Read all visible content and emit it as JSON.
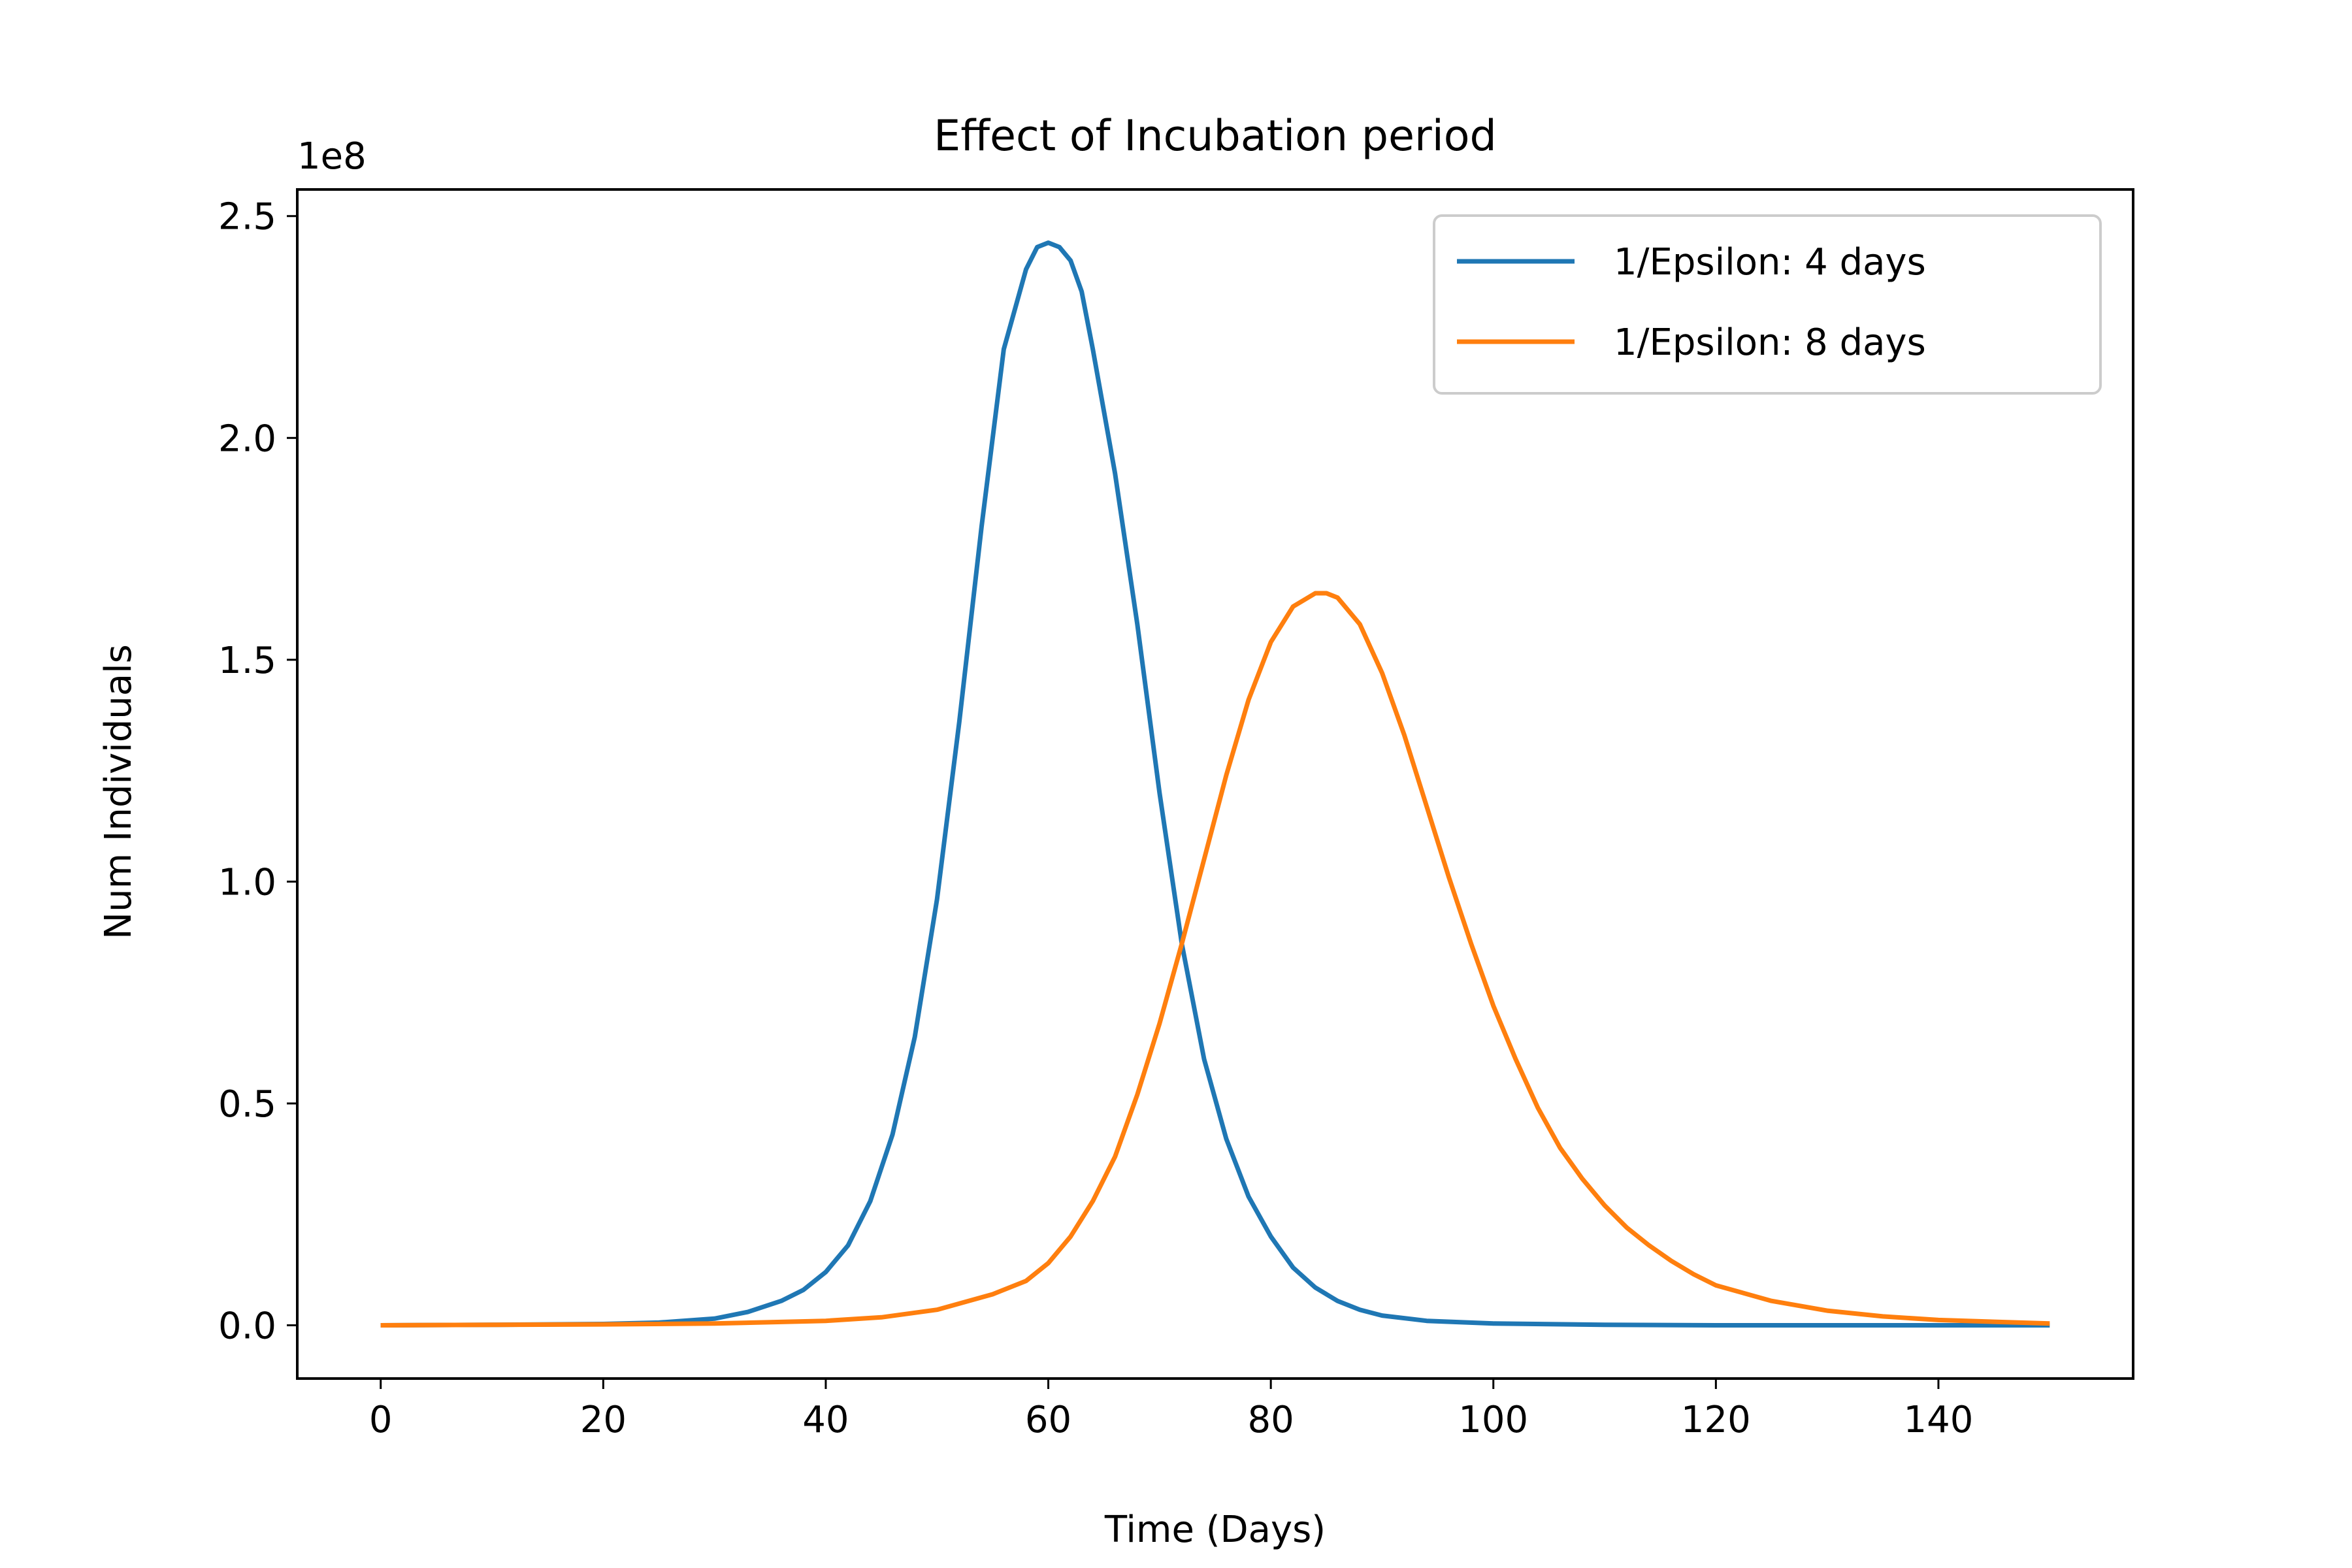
{
  "chart_data": {
    "type": "line",
    "title": "Effect of Incubation period",
    "xlabel": "Time (Days)",
    "ylabel": "Num Individuals",
    "y_offset_label": "1e8",
    "xlim": [
      -7.5,
      157.5
    ],
    "ylim": [
      -0.12,
      2.56
    ],
    "x_ticks": [
      0,
      20,
      40,
      60,
      80,
      100,
      120,
      140
    ],
    "x_tick_labels": [
      "0",
      "20",
      "40",
      "60",
      "80",
      "100",
      "120",
      "140"
    ],
    "y_ticks": [
      0.0,
      0.5,
      1.0,
      1.5,
      2.0,
      2.5
    ],
    "y_tick_labels": [
      "0.0",
      "0.5",
      "1.0",
      "1.5",
      "2.0",
      "2.5"
    ],
    "grid": false,
    "legend_position": "top-right",
    "series": [
      {
        "name": "1/Epsilon: 4 days",
        "color": "#1f77b4",
        "x": [
          0,
          10,
          20,
          25,
          30,
          33,
          36,
          38,
          40,
          42,
          44,
          46,
          48,
          50,
          52,
          54,
          56,
          58,
          59,
          60,
          61,
          62,
          63,
          64,
          66,
          68,
          70,
          72,
          74,
          76,
          78,
          80,
          82,
          84,
          86,
          88,
          90,
          94,
          100,
          110,
          120,
          150
        ],
        "y": [
          0.0,
          0.001,
          0.003,
          0.006,
          0.015,
          0.03,
          0.055,
          0.08,
          0.12,
          0.18,
          0.28,
          0.43,
          0.65,
          0.96,
          1.36,
          1.8,
          2.2,
          2.38,
          2.43,
          2.44,
          2.43,
          2.4,
          2.33,
          2.2,
          1.92,
          1.58,
          1.2,
          0.86,
          0.6,
          0.42,
          0.29,
          0.2,
          0.13,
          0.085,
          0.055,
          0.035,
          0.022,
          0.01,
          0.004,
          0.001,
          0.0,
          0.0
        ]
      },
      {
        "name": "1/Epsilon: 8 days",
        "color": "#ff7f0e",
        "x": [
          0,
          20,
          30,
          40,
          45,
          50,
          55,
          58,
          60,
          62,
          64,
          66,
          68,
          70,
          72,
          74,
          76,
          78,
          80,
          82,
          84,
          85,
          86,
          88,
          90,
          92,
          94,
          96,
          98,
          100,
          102,
          104,
          106,
          108,
          110,
          112,
          114,
          116,
          118,
          120,
          125,
          130,
          135,
          140,
          150
        ],
        "y": [
          0.0,
          0.002,
          0.004,
          0.01,
          0.018,
          0.035,
          0.07,
          0.1,
          0.14,
          0.2,
          0.28,
          0.38,
          0.52,
          0.68,
          0.86,
          1.05,
          1.24,
          1.41,
          1.54,
          1.62,
          1.65,
          1.65,
          1.64,
          1.58,
          1.47,
          1.33,
          1.17,
          1.01,
          0.86,
          0.72,
          0.6,
          0.49,
          0.4,
          0.33,
          0.27,
          0.22,
          0.18,
          0.145,
          0.115,
          0.09,
          0.055,
          0.033,
          0.02,
          0.012,
          0.004
        ]
      }
    ]
  }
}
